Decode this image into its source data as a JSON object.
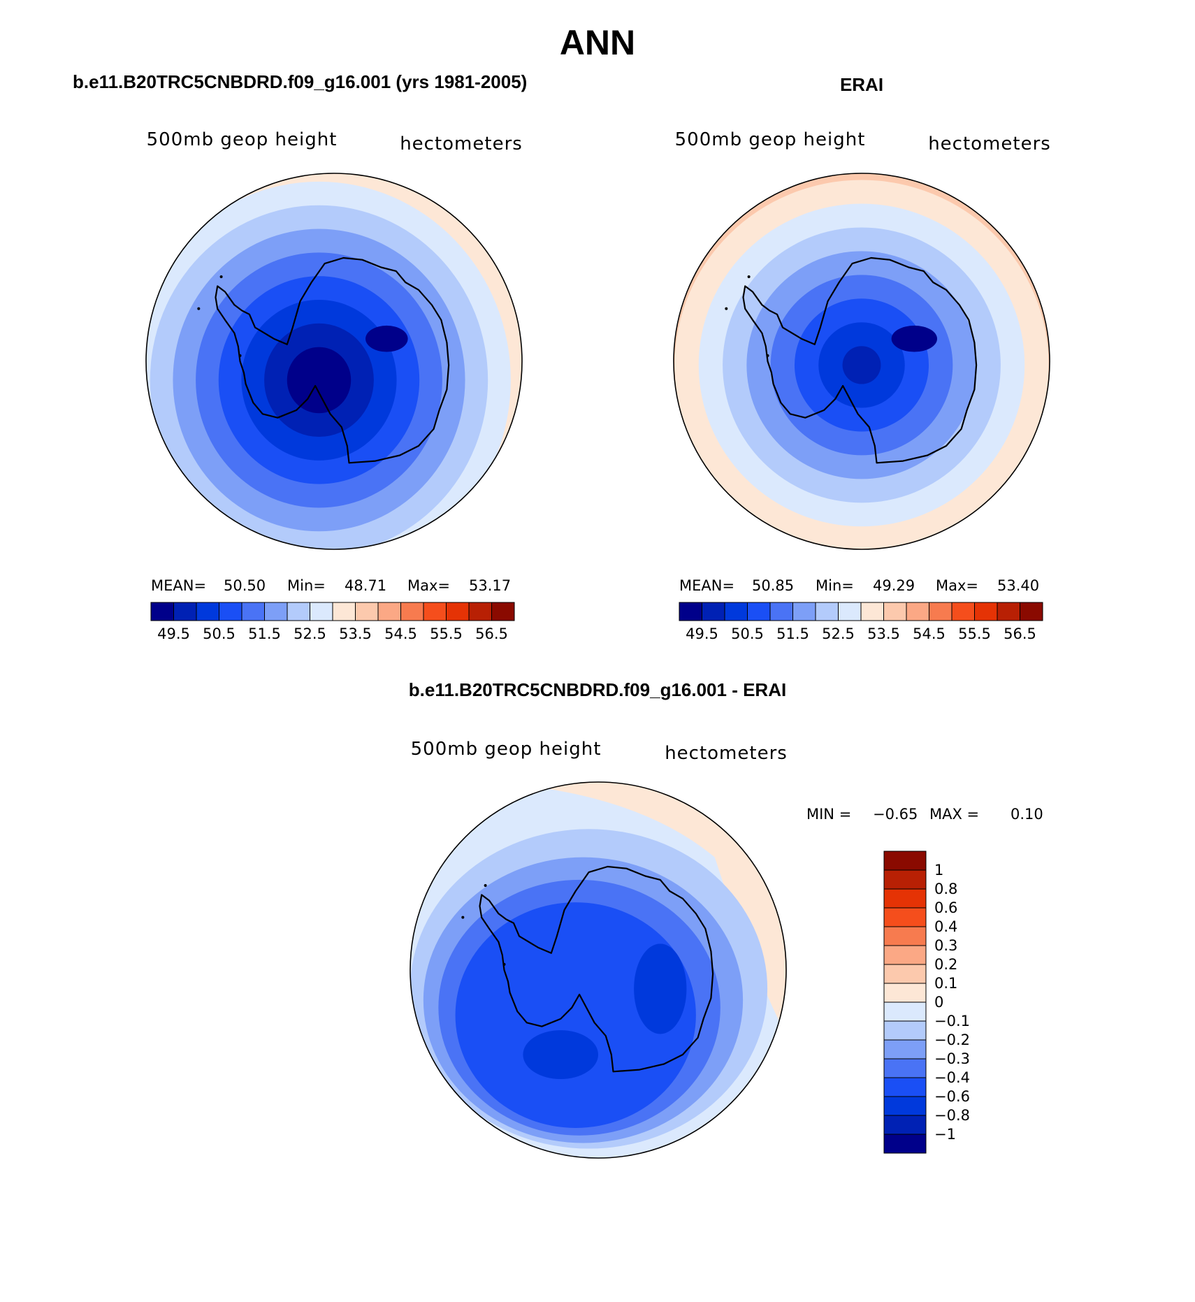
{
  "figure": {
    "main_title": "ANN",
    "colors": {
      "abs": [
        "#00008a",
        "#0021b4",
        "#0039dc",
        "#1a4ff5",
        "#4a73f5",
        "#7d9ff7",
        "#b3cbfb",
        "#dbe9fd",
        "#fde7d6",
        "#fcc9ad",
        "#fba885",
        "#f77b4f",
        "#f54e1c",
        "#e53305",
        "#b82004",
        "#8a0a00"
      ],
      "diff": [
        "#00008a",
        "#0021b4",
        "#0039dc",
        "#1a4ff5",
        "#4a73f5",
        "#7d9ff7",
        "#b3cbfb",
        "#dbe9fd",
        "#fde7d6",
        "#fcc9ad",
        "#fba885",
        "#f77b4f",
        "#f54e1c",
        "#e53305",
        "#b82004",
        "#8a0a00"
      ]
    }
  },
  "panels": {
    "model": {
      "title": "b.e11.B20TRC5CNBDRD.f09_g16.001 (yrs 1981-2005)",
      "variable": "500mb  geop  height",
      "units": "hectometers",
      "mean_label": "MEAN=",
      "mean": "50.50",
      "min_label": "Min=",
      "min": "48.71",
      "max_label": "Max=",
      "max": "53.17",
      "field": {
        "base": 48.8,
        "rise": 4.2,
        "shift_x": -0.08,
        "shift_y": 0.1,
        "stretch": 1.15,
        "bump": 0.25
      }
    },
    "obs": {
      "title": "ERAI",
      "variable": "500mb  geop  height",
      "units": "hectometers",
      "mean_label": "MEAN=",
      "mean": "50.85",
      "min_label": "Min=",
      "min": "49.29",
      "max_label": "Max=",
      "max": "53.40",
      "field": {
        "base": 49.6,
        "rise": 4.0,
        "shift_x": 0.0,
        "shift_y": 0.02,
        "stretch": 1.1,
        "bump": 0.35
      }
    },
    "diff": {
      "title": "b.e11.B20TRC5CNBDRD.f09_g16.001 - ERAI",
      "variable": "500mb  geop  height",
      "units": "hectometers",
      "min_label": "MIN =",
      "min": "−0.65",
      "max_label": "MAX =",
      "max": "0.10"
    }
  },
  "colorbar_abs": {
    "labels": [
      "49.5",
      "50.5",
      "51.5",
      "52.5",
      "53.5",
      "54.5",
      "55.5",
      "56.5"
    ]
  },
  "colorbar_diff": {
    "labels": [
      "1",
      "0.8",
      "0.6",
      "0.4",
      "0.3",
      "0.2",
      "0.1",
      "0",
      "−0.1",
      "−0.2",
      "−0.3",
      "−0.4",
      "−0.6",
      "−0.8",
      "−1"
    ]
  }
}
